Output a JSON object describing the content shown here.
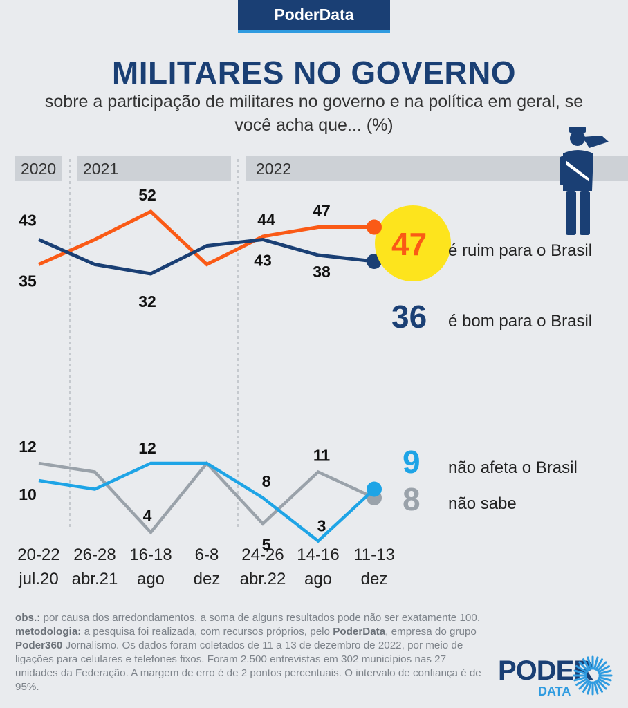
{
  "brand": "PoderData",
  "title": "MILITARES NO GOVERNO",
  "subtitle": "sobre a participação de militares no governo e na política em geral, se você acha que... (%)",
  "years": [
    "2020",
    "2021",
    "2022"
  ],
  "colors": {
    "ruim": "#fa5a16",
    "bom": "#1a3f74",
    "nao_afeta": "#1ea4e6",
    "nao_sabe": "#9aa2aa",
    "highlight": "#fde41d",
    "year_bar": "#cdd1d6"
  },
  "chart_data": {
    "type": "line",
    "x": [
      "20-22 jul.20",
      "26-28 abr.21",
      "16-18 ago",
      "6-8 dez",
      "24-26 abr.22",
      "14-16 ago",
      "11-13 dez"
    ],
    "x_line1": [
      "20-22",
      "26-28",
      "16-18",
      "6-8",
      "24-26",
      "14-16",
      "11-13"
    ],
    "x_line2": [
      "jul.20",
      "abr.21",
      "ago",
      "dez",
      "abr.22",
      "ago",
      "dez"
    ],
    "series": [
      {
        "key": "ruim",
        "name": "é ruim para o Brasil",
        "values": [
          35,
          43,
          52,
          35,
          44,
          47,
          47
        ],
        "labels": [
          "35",
          "",
          "52",
          "",
          "44",
          "47",
          "47"
        ],
        "latest": "47"
      },
      {
        "key": "bom",
        "name": "é bom para o Brasil",
        "values": [
          43,
          35,
          32,
          41,
          43,
          38,
          36
        ],
        "labels": [
          "43",
          "",
          "32",
          "",
          "43",
          "38",
          "36"
        ],
        "latest": "36"
      },
      {
        "key": "nao_afeta",
        "name": "não afeta o Brasil",
        "values": [
          10,
          9,
          12,
          12,
          8,
          3,
          9
        ],
        "labels": [
          "10",
          "",
          "12",
          "",
          "8",
          "3",
          "9"
        ],
        "latest": "9"
      },
      {
        "key": "nao_sabe",
        "name": "não sabe",
        "values": [
          12,
          11,
          4,
          12,
          5,
          11,
          8
        ],
        "labels": [
          "12",
          "",
          "4",
          "",
          "5",
          "11",
          "8"
        ],
        "latest": "8"
      }
    ]
  },
  "footnote": {
    "obs_label": "obs.:",
    "obs_text": " por causa dos arredondamentos, a soma de alguns resultados pode não ser exatamente 100.",
    "met_label": "metodologia:",
    "met_text_1": " a pesquisa foi realizada, com recursos próprios, pelo ",
    "met_brand": "PoderData",
    "met_text_2": ", empresa do grupo ",
    "met_group": "Poder360",
    "met_text_3": " Jornalismo. Os dados foram coletados de 11 a 13 de dezembro de 2022, por meio de ligações para celulares e telefones fixos. Foram 2.500 entrevistas em 302 municípios nas 27 unidades da Federação. A margem de erro é de 2 pontos percentuais. O intervalo de confiança é de 95%."
  },
  "logo": {
    "main": "PODER",
    "sub": "DATA"
  },
  "icons": {
    "soldier": "saluting-soldier-icon",
    "logo_mark": "sunburst-logo-icon"
  }
}
